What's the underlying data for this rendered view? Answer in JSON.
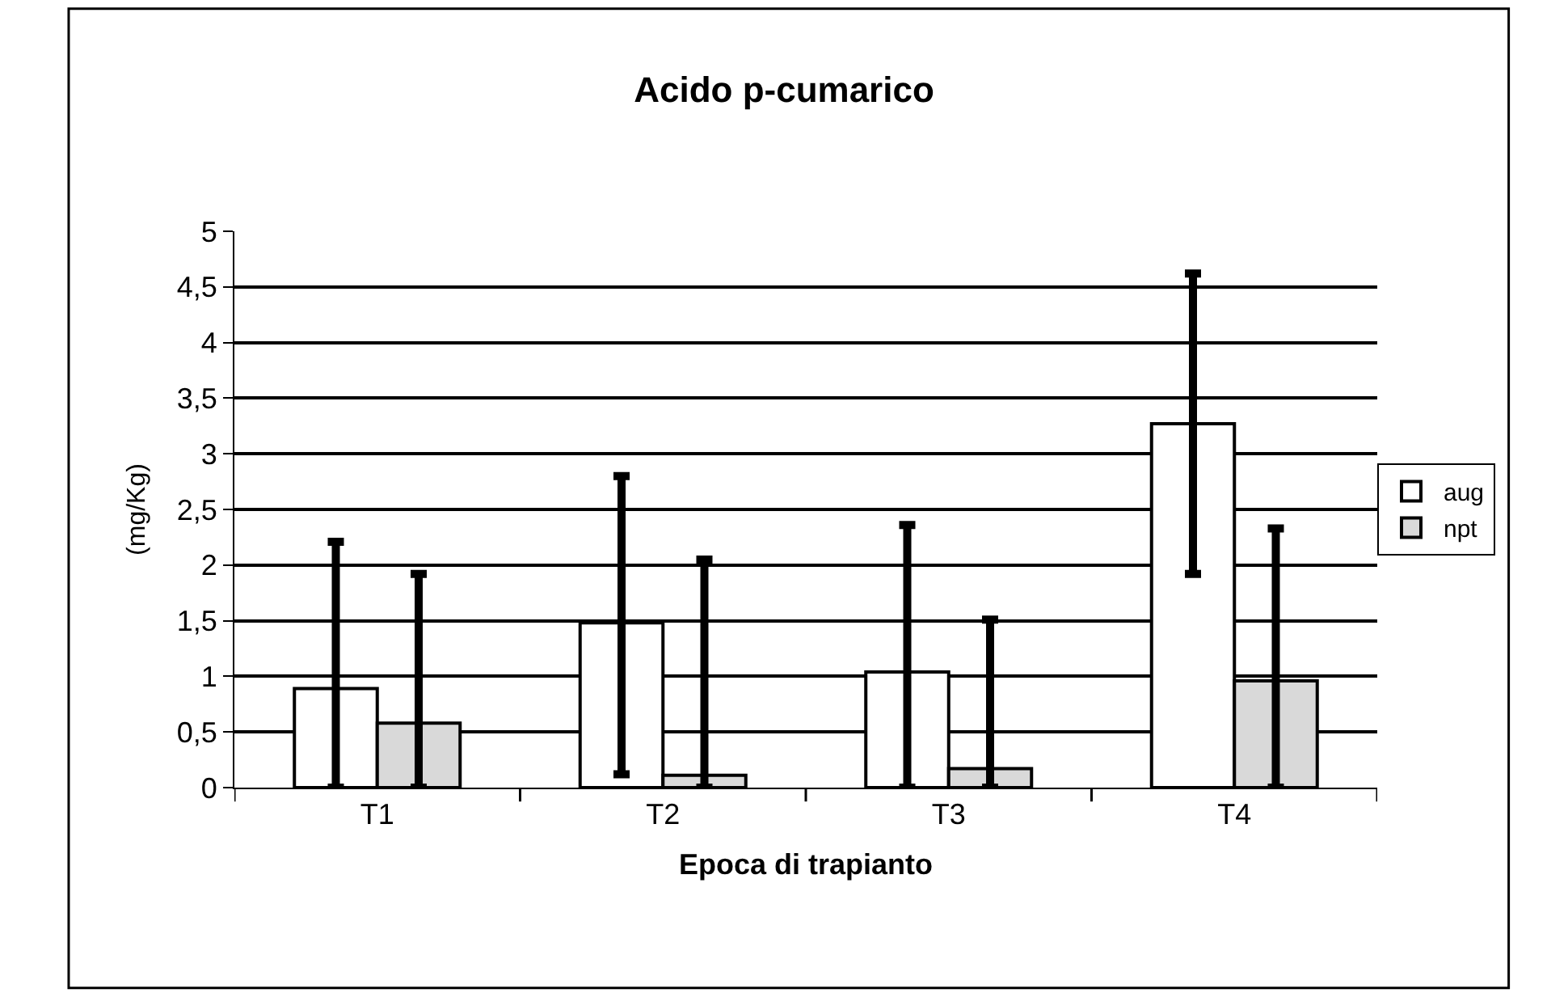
{
  "chart_data": {
    "type": "bar",
    "title": "Acido p-cumarico",
    "xlabel": "Epoca di trapianto",
    "ylabel": "(mg/Kg)",
    "categories": [
      "T1",
      "T2",
      "T3",
      "T4"
    ],
    "series": [
      {
        "name": "aug",
        "color": "#ffffff",
        "values": [
          0.89,
          1.48,
          1.04,
          3.27
        ],
        "errors": [
          [
            0,
            2.21
          ],
          [
            0.12,
            2.8
          ],
          [
            0,
            2.36
          ],
          [
            1.92,
            4.62
          ]
        ]
      },
      {
        "name": "npt",
        "color": "#d9d9d9",
        "values": [
          0.58,
          0.11,
          0.17,
          0.96
        ],
        "errors": [
          [
            0,
            1.92
          ],
          [
            0,
            2.05
          ],
          [
            0,
            1.51
          ],
          [
            0,
            2.33
          ]
        ]
      }
    ],
    "ylim": [
      0,
      5
    ],
    "yticks": [
      0,
      {
        "value": 0.5,
        "label": "0,5"
      },
      1,
      {
        "value": 1.5,
        "label": "1,5"
      },
      2,
      {
        "value": 2.5,
        "label": "2,5"
      },
      3,
      {
        "value": 3.5,
        "label": "3,5"
      },
      4,
      {
        "value": 4.5,
        "label": "4,5"
      },
      5
    ],
    "grid": "y",
    "legend": "right"
  }
}
